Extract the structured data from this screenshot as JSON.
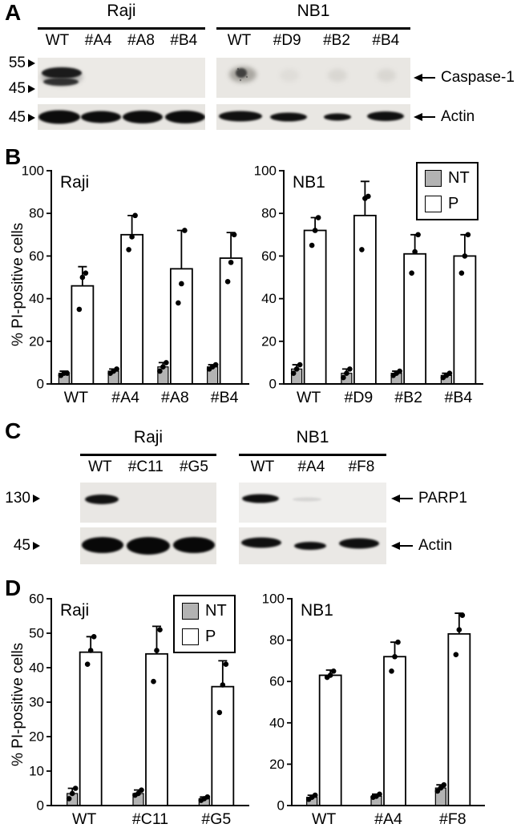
{
  "figure": {
    "panels": {
      "A": {
        "letter": "A",
        "groups": [
          {
            "name": "Raji",
            "lanes": [
              "WT",
              "#A4",
              "#A8",
              "#B4"
            ]
          },
          {
            "name": "NB1",
            "lanes": [
              "WT",
              "#D9",
              "#B2",
              "#B4"
            ]
          }
        ],
        "mw_markers": [
          "55",
          "45",
          "45"
        ],
        "protein_labels": [
          "Caspase-1",
          "Actin"
        ]
      },
      "B": {
        "letter": "B",
        "ylabel": "% PI-positive cells"
      },
      "C": {
        "letter": "C",
        "groups": [
          {
            "name": "Raji",
            "lanes": [
              "WT",
              "#C11",
              "#G5"
            ]
          },
          {
            "name": "NB1",
            "lanes": [
              "WT",
              "#A4",
              "#F8"
            ]
          }
        ],
        "mw_markers": [
          "130",
          "45"
        ],
        "protein_labels": [
          "PARP1",
          "Actin"
        ]
      },
      "D": {
        "letter": "D",
        "ylabel": "% PI-positive cells"
      }
    },
    "legend": {
      "items": [
        {
          "label": "NT",
          "color": "#b3b3b3"
        },
        {
          "label": "P",
          "color": "#ffffff"
        }
      ]
    }
  },
  "chart_data": [
    {
      "id": "B-Raji",
      "type": "bar",
      "title": "Raji",
      "ylabel": "% PI-positive cells",
      "ylim": [
        0,
        100
      ],
      "yticks": [
        0,
        20,
        40,
        60,
        80,
        100
      ],
      "categories": [
        "WT",
        "#A4",
        "#A8",
        "#B4"
      ],
      "series": [
        {
          "name": "NT",
          "values": [
            5,
            6,
            8,
            8
          ],
          "errors": [
            1,
            1,
            2,
            1
          ],
          "points": [
            [
              4,
              5,
              5
            ],
            [
              5,
              6,
              7
            ],
            [
              6,
              8,
              10
            ],
            [
              7,
              8,
              9
            ]
          ]
        },
        {
          "name": "P",
          "values": [
            46,
            70,
            54,
            59
          ],
          "errors": [
            9,
            9,
            18,
            12
          ],
          "points": [
            [
              35,
              50,
              52
            ],
            [
              63,
              69,
              79
            ],
            [
              38,
              47,
              72
            ],
            [
              48,
              57,
              70
            ]
          ]
        }
      ]
    },
    {
      "id": "B-NB1",
      "type": "bar",
      "title": "NB1",
      "ylabel": "% PI-positive cells",
      "ylim": [
        0,
        100
      ],
      "yticks": [
        0,
        20,
        40,
        60,
        80,
        100
      ],
      "categories": [
        "WT",
        "#D9",
        "#B2",
        "#B4"
      ],
      "series": [
        {
          "name": "NT",
          "values": [
            7,
            5,
            5,
            4
          ],
          "errors": [
            2,
            2,
            1,
            1
          ],
          "points": [
            [
              5,
              7,
              9
            ],
            [
              3,
              5,
              7
            ],
            [
              4,
              5,
              6
            ],
            [
              3,
              4,
              5
            ]
          ]
        },
        {
          "name": "P",
          "values": [
            72,
            79,
            61,
            60
          ],
          "errors": [
            6,
            16,
            9,
            10
          ],
          "points": [
            [
              65,
              72,
              78
            ],
            [
              63,
              87,
              88
            ],
            [
              52,
              62,
              70
            ],
            [
              52,
              60,
              70
            ]
          ]
        }
      ]
    },
    {
      "id": "D-Raji",
      "type": "bar",
      "title": "Raji",
      "ylabel": "% PI-positive cells",
      "ylim": [
        0,
        60
      ],
      "yticks": [
        0,
        10,
        20,
        30,
        40,
        50,
        60
      ],
      "categories": [
        "WT",
        "#C11",
        "#G5"
      ],
      "series": [
        {
          "name": "NT",
          "values": [
            3.5,
            3.5,
            2
          ],
          "errors": [
            1.5,
            1,
            0.5
          ],
          "points": [
            [
              2,
              3.5,
              5
            ],
            [
              3,
              3.5,
              4.5
            ],
            [
              1.5,
              2,
              2.5
            ]
          ]
        },
        {
          "name": "P",
          "values": [
            44.5,
            44,
            34.5
          ],
          "errors": [
            4.5,
            8,
            7.5
          ],
          "points": [
            [
              41,
              45,
              49
            ],
            [
              36,
              45,
              51
            ],
            [
              27,
              35,
              41
            ]
          ]
        }
      ]
    },
    {
      "id": "D-NB1",
      "type": "bar",
      "title": "NB1",
      "ylabel": "% PI-positive cells",
      "ylim": [
        0,
        100
      ],
      "yticks": [
        0,
        20,
        40,
        60,
        80,
        100
      ],
      "categories": [
        "WT",
        "#A4",
        "#F8"
      ],
      "series": [
        {
          "name": "NT",
          "values": [
            4,
            4.5,
            8.5
          ],
          "errors": [
            1,
            1,
            1.5
          ],
          "points": [
            [
              3,
              4,
              5
            ],
            [
              4,
              4.5,
              5.5
            ],
            [
              7,
              8.5,
              10
            ]
          ]
        },
        {
          "name": "P",
          "values": [
            63,
            72,
            83
          ],
          "errors": [
            2.5,
            7,
            10
          ],
          "points": [
            [
              62,
              63,
              65
            ],
            [
              65,
              72,
              79
            ],
            [
              73,
              85,
              92
            ]
          ]
        }
      ]
    }
  ]
}
